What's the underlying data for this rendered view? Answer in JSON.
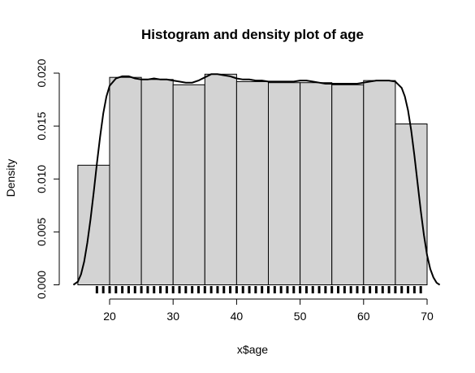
{
  "chart_data": {
    "type": "histogram",
    "title": "Histogram and density plot of age",
    "xlabel": "x$age",
    "ylabel": "Density",
    "xlim": [
      13,
      72
    ],
    "ylim": [
      0,
      0.021
    ],
    "x_ticks": [
      20,
      30,
      40,
      50,
      60,
      70
    ],
    "x_tick_labels": [
      "20",
      "30",
      "40",
      "50",
      "60",
      "70"
    ],
    "y_ticks": [
      0,
      0.005,
      0.01,
      0.015,
      0.02
    ],
    "y_tick_labels": [
      "0.000",
      "0.005",
      "0.010",
      "0.015",
      "0.020"
    ],
    "grid": false,
    "bins": [
      {
        "start": 15,
        "end": 20,
        "density": 0.0113
      },
      {
        "start": 20,
        "end": 25,
        "density": 0.0196
      },
      {
        "start": 25,
        "end": 30,
        "density": 0.0194
      },
      {
        "start": 30,
        "end": 35,
        "density": 0.0189
      },
      {
        "start": 35,
        "end": 40,
        "density": 0.0199
      },
      {
        "start": 40,
        "end": 45,
        "density": 0.0192
      },
      {
        "start": 45,
        "end": 50,
        "density": 0.0191
      },
      {
        "start": 50,
        "end": 55,
        "density": 0.0191
      },
      {
        "start": 55,
        "end": 60,
        "density": 0.0189
      },
      {
        "start": 60,
        "end": 65,
        "density": 0.0193
      },
      {
        "start": 65,
        "end": 70,
        "density": 0.0152
      }
    ],
    "density_curve": {
      "x": [
        14.3,
        15.0,
        15.5,
        16.0,
        16.5,
        17.0,
        17.5,
        18.0,
        18.5,
        19.0,
        19.5,
        20.0,
        21.0,
        22.0,
        23.0,
        24.0,
        25.0,
        26.0,
        27.0,
        28.0,
        29.0,
        30.0,
        31.0,
        32.0,
        33.0,
        34.0,
        35.0,
        36.0,
        37.0,
        38.0,
        39.0,
        40.0,
        41.0,
        42.0,
        43.0,
        44.0,
        45.0,
        46.0,
        47.0,
        48.0,
        49.0,
        50.0,
        51.0,
        52.0,
        53.0,
        54.0,
        55.0,
        56.0,
        57.0,
        58.0,
        59.0,
        60.0,
        61.0,
        62.0,
        63.0,
        64.0,
        65.0,
        66.0,
        66.5,
        67.0,
        67.5,
        68.0,
        68.5,
        69.0,
        69.5,
        70.0,
        70.5,
        71.0,
        71.5,
        72.0
      ],
      "y": [
        0.0,
        0.0003,
        0.001,
        0.0022,
        0.004,
        0.0062,
        0.0088,
        0.0115,
        0.014,
        0.0162,
        0.0178,
        0.0188,
        0.0195,
        0.0197,
        0.0197,
        0.0195,
        0.0194,
        0.0194,
        0.0195,
        0.0194,
        0.0194,
        0.0193,
        0.0192,
        0.0191,
        0.0191,
        0.0193,
        0.0196,
        0.0199,
        0.0199,
        0.0198,
        0.0197,
        0.0195,
        0.0194,
        0.0194,
        0.0193,
        0.0193,
        0.0192,
        0.0192,
        0.0192,
        0.0192,
        0.0192,
        0.0193,
        0.0193,
        0.0192,
        0.0191,
        0.019,
        0.019,
        0.019,
        0.019,
        0.019,
        0.019,
        0.0191,
        0.0192,
        0.0193,
        0.0193,
        0.0193,
        0.0192,
        0.0186,
        0.0178,
        0.0165,
        0.0146,
        0.0122,
        0.0096,
        0.007,
        0.0047,
        0.0028,
        0.0015,
        0.0007,
        0.0002,
        0.0
      ]
    },
    "rug": {
      "start": 18,
      "end": 69,
      "step": 1
    }
  }
}
